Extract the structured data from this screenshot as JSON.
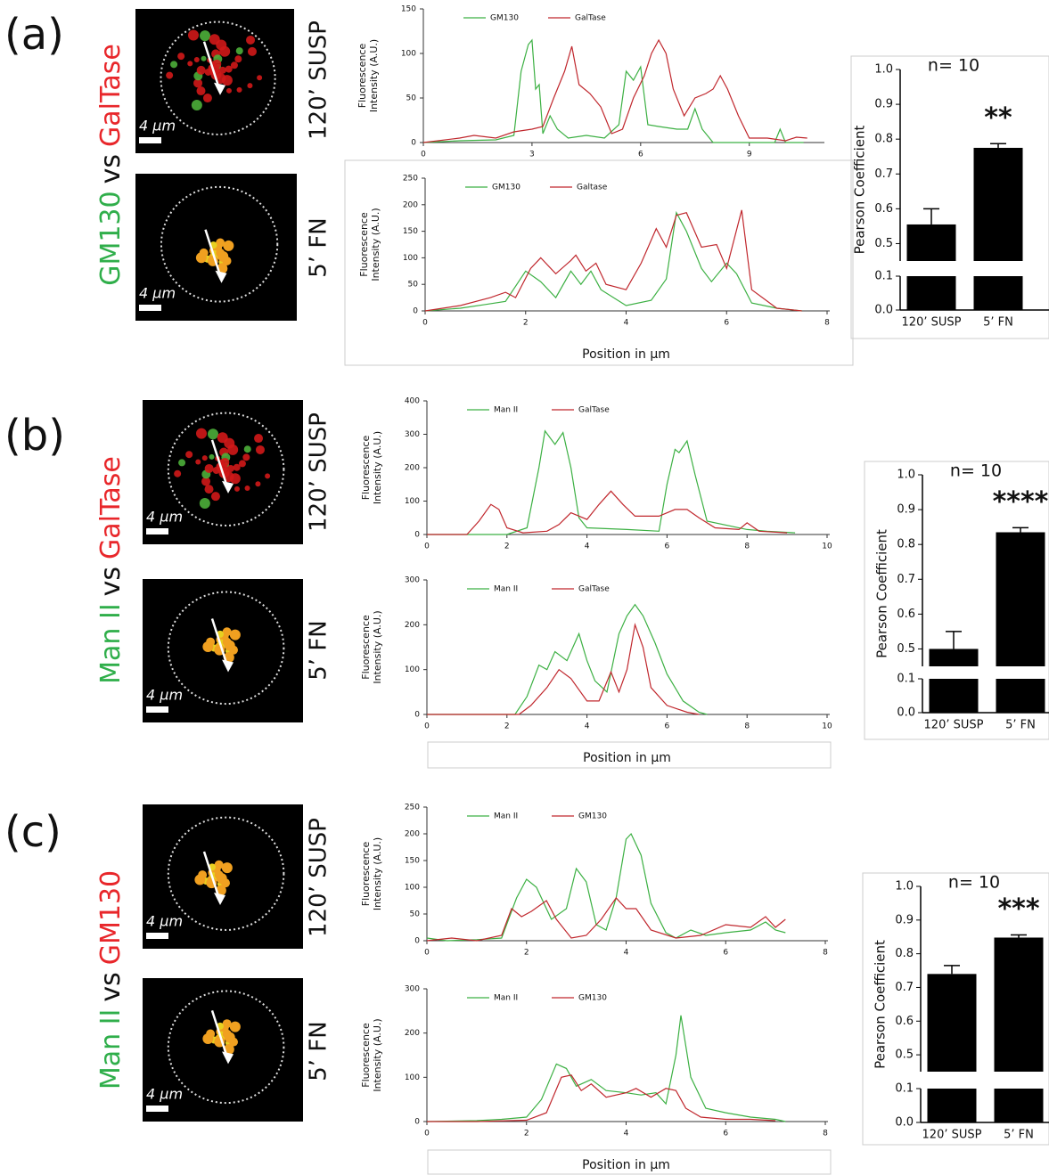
{
  "panels": [
    {
      "label": "(a)",
      "pair": {
        "first": "GM130",
        "vs": "vs",
        "second": "GalTase"
      },
      "conditions": [
        "120’ SUSP",
        "5’ FN"
      ],
      "scale_bars": [
        "4 µm",
        "4 µm"
      ]
    },
    {
      "label": "(b)",
      "pair": {
        "first": "Man II",
        "vs": "vs",
        "second": "GalTase"
      },
      "conditions": [
        "120’ SUSP",
        "5’ FN"
      ],
      "scale_bars": [
        "4 µm",
        "4 µm"
      ]
    },
    {
      "label": "(c)",
      "pair": {
        "first": "Man II",
        "vs": "vs",
        "second": "GM130"
      },
      "conditions": [
        "120’ SUSP",
        "5’ FN"
      ],
      "scale_bars": [
        "4 µm",
        "4 µm"
      ]
    }
  ],
  "chart_data": [
    {
      "type": "line",
      "ylabel": [
        "Fluorescence",
        "Intensity (A.U.)"
      ],
      "xlim": [
        0,
        11
      ],
      "xticks": [
        0,
        3,
        6,
        9
      ],
      "ylim": [
        0,
        150
      ],
      "yticks": [
        0,
        50,
        100,
        150
      ],
      "series": [
        {
          "name": "GM130",
          "color": "#3cb043",
          "x": [
            0,
            1,
            2,
            2.5,
            2.7,
            2.9,
            3.0,
            3.1,
            3.2,
            3.3,
            3.5,
            3.7,
            4,
            4.5,
            5,
            5.4,
            5.6,
            5.8,
            6.0,
            6.2,
            6.5,
            7.0,
            7.3,
            7.5,
            7.7,
            8,
            9,
            9.7,
            9.85,
            10,
            10.5
          ],
          "values": [
            0,
            2,
            3,
            8,
            80,
            110,
            115,
            60,
            65,
            10,
            30,
            15,
            5,
            8,
            5,
            20,
            80,
            70,
            85,
            20,
            18,
            15,
            15,
            38,
            15,
            0,
            0,
            0,
            15,
            0,
            0
          ]
        },
        {
          "name": "GalTase",
          "color": "#c0272d",
          "x": [
            0,
            1.0,
            1.4,
            2,
            2.5,
            3.0,
            3.3,
            3.6,
            3.9,
            4.1,
            4.3,
            4.6,
            4.9,
            5.2,
            5.5,
            5.8,
            6.1,
            6.3,
            6.5,
            6.7,
            6.9,
            7.2,
            7.5,
            7.8,
            8.0,
            8.2,
            8.4,
            8.7,
            9.0,
            9.5,
            10.0,
            10.3,
            10.6
          ],
          "values": [
            0,
            5,
            8,
            5,
            12,
            15,
            18,
            50,
            80,
            108,
            65,
            55,
            40,
            10,
            15,
            50,
            75,
            100,
            115,
            100,
            60,
            30,
            50,
            55,
            60,
            75,
            60,
            30,
            5,
            5,
            2,
            6,
            5
          ]
        }
      ]
    },
    {
      "type": "line",
      "ylabel": [
        "Fluorescence",
        "Intensity (A.U.)"
      ],
      "xlabel": "Position in µm",
      "xlim": [
        0,
        8
      ],
      "xticks": [
        0,
        2,
        4,
        6,
        8
      ],
      "ylim": [
        0,
        250
      ],
      "yticks": [
        0,
        50,
        100,
        150,
        200,
        250
      ],
      "series": [
        {
          "name": "GM130",
          "color": "#3cb043",
          "x": [
            0,
            0.7,
            1.2,
            1.6,
            2.0,
            2.3,
            2.6,
            2.9,
            3.1,
            3.3,
            3.5,
            4.0,
            4.5,
            4.8,
            5.0,
            5.2,
            5.5,
            5.7,
            6.0,
            6.2,
            6.5,
            7.0,
            7.5
          ],
          "values": [
            0,
            5,
            12,
            18,
            75,
            55,
            25,
            75,
            50,
            75,
            40,
            10,
            20,
            60,
            185,
            150,
            80,
            55,
            90,
            70,
            15,
            5,
            0
          ]
        },
        {
          "name": "Galtase",
          "color": "#c0272d",
          "x": [
            0,
            0.7,
            1.3,
            1.6,
            1.8,
            2.1,
            2.3,
            2.6,
            2.9,
            3.0,
            3.2,
            3.4,
            3.6,
            4.0,
            4.3,
            4.6,
            4.8,
            5.0,
            5.2,
            5.5,
            5.8,
            6.0,
            6.3,
            6.5,
            7.0,
            7.5
          ],
          "values": [
            0,
            10,
            25,
            35,
            25,
            80,
            100,
            70,
            95,
            105,
            75,
            90,
            50,
            40,
            90,
            155,
            120,
            180,
            185,
            120,
            125,
            80,
            190,
            40,
            5,
            0
          ]
        }
      ]
    },
    {
      "type": "bar",
      "ylabel": "Pearson Coefficient",
      "categories": [
        "120’ SUSP",
        "5’ FN"
      ],
      "values": [
        0.555,
        0.775
      ],
      "errors": [
        0.045,
        0.012
      ],
      "color": "#000000",
      "annotation": "**",
      "n_label": "n= 10",
      "ylim": [
        0,
        1
      ],
      "ybreak": [
        0.1,
        0.45
      ],
      "yticks": [
        {
          "value": 0,
          "label": "0.0"
        },
        0.1,
        0.5,
        0.6,
        0.7,
        0.8,
        0.9,
        {
          "value": 1,
          "label": "1.0"
        }
      ]
    },
    {
      "type": "line",
      "ylabel": [
        "Fluorescence",
        "Intensity (A.U.)"
      ],
      "xlim": [
        0,
        10
      ],
      "xticks": [
        0,
        2,
        4,
        6,
        8,
        10
      ],
      "ylim": [
        0,
        400
      ],
      "yticks": [
        0,
        100,
        200,
        300,
        400
      ],
      "series": [
        {
          "name": "Man II",
          "color": "#3cb043",
          "x": [
            0,
            1,
            2,
            2.5,
            2.8,
            2.95,
            3.2,
            3.4,
            3.6,
            3.8,
            4,
            5,
            5.8,
            6.0,
            6.2,
            6.3,
            6.5,
            6.7,
            7,
            8,
            8.5,
            9.2
          ],
          "values": [
            0,
            0,
            0,
            20,
            200,
            310,
            270,
            305,
            200,
            50,
            20,
            15,
            10,
            150,
            255,
            245,
            280,
            180,
            40,
            15,
            10,
            5
          ]
        },
        {
          "name": "GalTase",
          "color": "#c0272d",
          "x": [
            0,
            1,
            1.3,
            1.6,
            1.8,
            2.0,
            2.4,
            3.0,
            3.3,
            3.6,
            4.0,
            4.3,
            4.6,
            4.9,
            5.2,
            5.8,
            6.2,
            6.5,
            6.8,
            7.2,
            7.8,
            8.0,
            8.3,
            9.0
          ],
          "values": [
            0,
            0,
            40,
            90,
            75,
            20,
            5,
            10,
            30,
            65,
            45,
            90,
            130,
            90,
            55,
            55,
            75,
            75,
            50,
            20,
            15,
            35,
            10,
            5
          ]
        }
      ]
    },
    {
      "type": "line",
      "ylabel": [
        "Fluorescence",
        "Intensity (A.U.)"
      ],
      "xlabel": "Position in µm",
      "xlim": [
        0,
        10
      ],
      "xticks": [
        0,
        2,
        4,
        6,
        8,
        10
      ],
      "ylim": [
        0,
        300
      ],
      "yticks": [
        0,
        100,
        200,
        300
      ],
      "series": [
        {
          "name": "Man II",
          "color": "#3cb043",
          "x": [
            0,
            2.2,
            2.5,
            2.8,
            3.0,
            3.2,
            3.5,
            3.8,
            4.0,
            4.2,
            4.5,
            4.8,
            5.0,
            5.2,
            5.4,
            5.7,
            6.0,
            6.4,
            6.8,
            7.0
          ],
          "values": [
            0,
            0,
            40,
            110,
            100,
            140,
            120,
            180,
            120,
            75,
            50,
            180,
            220,
            245,
            220,
            160,
            90,
            30,
            5,
            0
          ]
        },
        {
          "name": "GalTase",
          "color": "#c0272d",
          "x": [
            0,
            2.3,
            2.6,
            3.0,
            3.3,
            3.6,
            4.0,
            4.3,
            4.6,
            4.8,
            5.0,
            5.2,
            5.4,
            5.6,
            6.0,
            6.5,
            6.8
          ],
          "values": [
            0,
            0,
            20,
            60,
            100,
            80,
            30,
            30,
            95,
            50,
            100,
            200,
            150,
            60,
            20,
            5,
            0
          ]
        }
      ]
    },
    {
      "type": "bar",
      "ylabel": "Pearson Coefficient",
      "categories": [
        "120’ SUSP",
        "5’ FN"
      ],
      "values": [
        0.5,
        0.835
      ],
      "errors": [
        0.05,
        0.013
      ],
      "color": "#000000",
      "annotation": "****",
      "n_label": "n= 10",
      "ylim": [
        0,
        1
      ],
      "ybreak": [
        0.1,
        0.45
      ],
      "yticks": [
        {
          "value": 0,
          "label": "0.0"
        },
        0.1,
        0.5,
        0.6,
        0.7,
        0.8,
        0.9,
        {
          "value": 1,
          "label": "1.0"
        }
      ]
    },
    {
      "type": "line",
      "ylabel": [
        "Fluorescence",
        "Intensity (A.U.)"
      ],
      "xlim": [
        0,
        8
      ],
      "xticks": [
        0,
        2,
        4,
        6,
        8
      ],
      "ylim": [
        0,
        250
      ],
      "yticks": [
        0,
        50,
        100,
        150,
        200,
        250
      ],
      "series": [
        {
          "name": "Man II",
          "color": "#3cb043",
          "x": [
            0,
            0.4,
            1.0,
            1.5,
            1.8,
            2.0,
            2.2,
            2.5,
            2.8,
            3.0,
            3.2,
            3.4,
            3.6,
            3.8,
            4.0,
            4.1,
            4.3,
            4.5,
            4.8,
            5.0,
            5.3,
            5.6,
            6.0,
            6.5,
            6.8,
            7.0,
            7.2
          ],
          "values": [
            5,
            0,
            2,
            5,
            80,
            115,
            100,
            40,
            60,
            135,
            110,
            30,
            20,
            80,
            190,
            200,
            160,
            70,
            15,
            5,
            20,
            10,
            15,
            20,
            35,
            20,
            15
          ]
        },
        {
          "name": "GM130",
          "color": "#c0272d",
          "x": [
            0,
            0.5,
            1.0,
            1.5,
            1.7,
            1.9,
            2.1,
            2.4,
            2.6,
            2.9,
            3.2,
            3.5,
            3.8,
            4.0,
            4.2,
            4.5,
            5.0,
            5.5,
            6.0,
            6.5,
            6.8,
            7.0,
            7.2
          ],
          "values": [
            0,
            5,
            0,
            10,
            60,
            45,
            55,
            75,
            40,
            5,
            10,
            40,
            80,
            60,
            60,
            20,
            5,
            10,
            30,
            25,
            45,
            25,
            40
          ]
        }
      ]
    },
    {
      "type": "line",
      "ylabel": [
        "Fluorescence",
        "Intensity (A.U.)"
      ],
      "xlabel": "Position in µm",
      "xlim": [
        0,
        8
      ],
      "xticks": [
        0,
        2,
        4,
        6,
        8
      ],
      "ylim": [
        0,
        300
      ],
      "yticks": [
        0,
        100,
        200,
        300
      ],
      "series": [
        {
          "name": "Man II",
          "color": "#3cb043",
          "x": [
            0,
            1,
            1.5,
            2.0,
            2.3,
            2.6,
            2.8,
            3.0,
            3.3,
            3.6,
            4.0,
            4.3,
            4.6,
            4.8,
            5.0,
            5.1,
            5.3,
            5.6,
            6.0,
            6.5,
            7.0,
            7.2
          ],
          "values": [
            0,
            2,
            5,
            10,
            50,
            130,
            120,
            80,
            95,
            70,
            65,
            60,
            65,
            40,
            150,
            240,
            100,
            30,
            20,
            10,
            5,
            0
          ]
        },
        {
          "name": "GM130",
          "color": "#c0272d",
          "x": [
            0,
            1,
            2,
            2.4,
            2.7,
            2.9,
            3.1,
            3.3,
            3.6,
            4.0,
            4.2,
            4.5,
            4.8,
            5.0,
            5.2,
            5.5,
            6.0,
            6.5,
            7.0
          ],
          "values": [
            0,
            0,
            3,
            20,
            100,
            105,
            70,
            85,
            55,
            65,
            75,
            55,
            75,
            70,
            30,
            10,
            5,
            5,
            2
          ]
        }
      ]
    },
    {
      "type": "bar",
      "ylabel": "Pearson Coefficient",
      "categories": [
        "120’ SUSP",
        "5’ FN"
      ],
      "values": [
        0.74,
        0.848
      ],
      "errors": [
        0.025,
        0.008
      ],
      "color": "#000000",
      "annotation": "***",
      "n_label": "n= 10",
      "ylim": [
        0,
        1
      ],
      "ybreak": [
        0.1,
        0.45
      ],
      "yticks": [
        {
          "value": 0,
          "label": "0.0"
        },
        0.1,
        0.5,
        0.6,
        0.7,
        0.8,
        0.9,
        {
          "value": 1,
          "label": "1.0"
        }
      ]
    }
  ]
}
